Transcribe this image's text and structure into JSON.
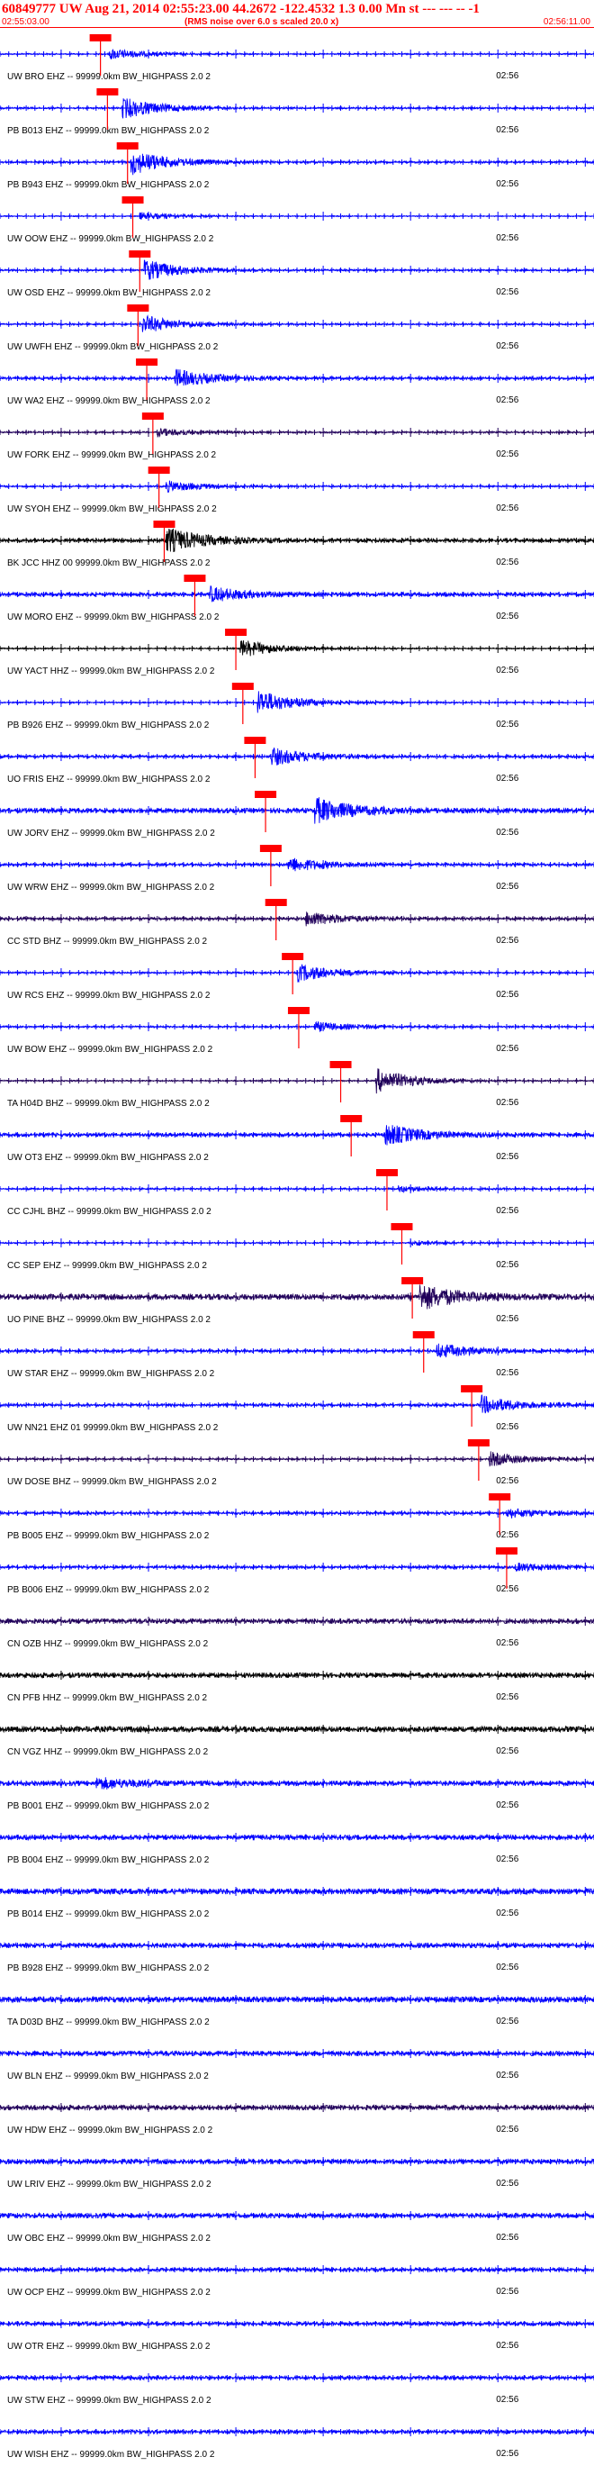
{
  "header": {
    "title": "60849777 UW Aug 21, 2014 02:55:23.00   44.2672 -122.4532  1.3 0.00 Mn st --- --- --  -1",
    "start_time": "02:55:03.00",
    "note": "(RMS noise over 6.0 s scaled 20.0 x)",
    "end_time": "02:56:11.00"
  },
  "chart_data": {
    "type": "line",
    "title": "60849777 UW Aug 21, 2014 02:55:23.00   44.2672 -122.4532  1.3 0.00 Mn st --- --- --  -1",
    "x_start": "02:55:03.00",
    "x_end": "02:56:11.00",
    "x_range_seconds": [
      0,
      68
    ],
    "tick_label": "02:56",
    "tick_label_time_s": 57,
    "grid": false,
    "legend": "none",
    "colors": {
      "blue": "#0000ff",
      "dark": "#20005a",
      "black": "#000000",
      "pick": "#ff0000"
    },
    "traces": [
      {
        "label": "UW BRO EHZ -- 99999.0km BW_HIGHPASS  2.0  2",
        "pick_s": 11.5,
        "color": "blue",
        "amp": 0.8,
        "burst_s": 12.5,
        "burst_amp": 6
      },
      {
        "label": "PB B013 EHZ -- 99999.0km BW_HIGHPASS  2.0  2",
        "pick_s": 12.3,
        "color": "blue",
        "amp": 1.0,
        "burst_s": 14.0,
        "burst_amp": 12
      },
      {
        "label": "PB B943 EHZ -- 99999.0km BW_HIGHPASS  2.0  2",
        "pick_s": 14.6,
        "color": "blue",
        "amp": 1.2,
        "burst_s": 15.0,
        "burst_amp": 14
      },
      {
        "label": "UW OOW EHZ -- 99999.0km BW_HIGHPASS  2.0  2",
        "pick_s": 15.2,
        "color": "blue",
        "amp": 0.6,
        "burst_s": 16.0,
        "burst_amp": 4
      },
      {
        "label": "UW OSD EHZ -- 99999.0km BW_HIGHPASS  2.0  2",
        "pick_s": 16.0,
        "color": "blue",
        "amp": 1.0,
        "burst_s": 16.5,
        "burst_amp": 12
      },
      {
        "label": "UW UWFH EHZ -- 99999.0km BW_HIGHPASS  2.0  2",
        "pick_s": 15.8,
        "color": "blue",
        "amp": 1.0,
        "burst_s": 16.3,
        "burst_amp": 10
      },
      {
        "label": "UW WA2 EHZ -- 99999.0km BW_HIGHPASS  2.0  2",
        "pick_s": 16.8,
        "color": "blue",
        "amp": 1.5,
        "burst_s": 20.0,
        "burst_amp": 10
      },
      {
        "label": "UW FORK EHZ -- 99999.0km BW_HIGHPASS  2.0  2",
        "pick_s": 17.5,
        "color": "dark",
        "amp": 1.0,
        "burst_s": 18.0,
        "burst_amp": 4
      },
      {
        "label": "UW SYOH EHZ -- 99999.0km BW_HIGHPASS  2.0  2",
        "pick_s": 18.2,
        "color": "blue",
        "amp": 1.0,
        "burst_s": 19.0,
        "burst_amp": 6
      },
      {
        "label": "BK JCC HHZ 00 99999.0km BW_HIGHPASS  2.0  2",
        "pick_s": 18.8,
        "color": "black",
        "amp": 2.0,
        "burst_s": 19.0,
        "burst_amp": 14
      },
      {
        "label": "UW MORO EHZ -- 99999.0km BW_HIGHPASS  2.0  2",
        "pick_s": 22.3,
        "color": "blue",
        "amp": 2.0,
        "burst_s": 24.0,
        "burst_amp": 8
      },
      {
        "label": "UW YACT HHZ -- 99999.0km BW_HIGHPASS  2.0  2",
        "pick_s": 27.0,
        "color": "black",
        "amp": 0.8,
        "burst_s": 27.5,
        "burst_amp": 10
      },
      {
        "label": "PB B926 EHZ -- 99999.0km BW_HIGHPASS  2.0  2",
        "pick_s": 27.8,
        "color": "blue",
        "amp": 0.8,
        "burst_s": 29.5,
        "burst_amp": 14
      },
      {
        "label": "UO FRIS EHZ -- 99999.0km BW_HIGHPASS  2.0  2",
        "pick_s": 29.2,
        "color": "blue",
        "amp": 1.5,
        "burst_s": 31.0,
        "burst_amp": 10
      },
      {
        "label": "UW JORV EHZ -- 99999.0km BW_HIGHPASS  2.0  2",
        "pick_s": 30.4,
        "color": "blue",
        "amp": 2.5,
        "burst_s": 36.0,
        "burst_amp": 14
      },
      {
        "label": "UW WRW EHZ -- 99999.0km BW_HIGHPASS  2.0  2",
        "pick_s": 31.0,
        "color": "blue",
        "amp": 1.5,
        "burst_s": 33.0,
        "burst_amp": 8
      },
      {
        "label": "CC STD BHZ -- 99999.0km BW_HIGHPASS  2.0  2",
        "pick_s": 31.6,
        "color": "dark",
        "amp": 1.5,
        "burst_s": 35.0,
        "burst_amp": 8
      },
      {
        "label": "UW RCS EHZ -- 99999.0km BW_HIGHPASS  2.0  2",
        "pick_s": 33.5,
        "color": "blue",
        "amp": 1.0,
        "burst_s": 34.0,
        "burst_amp": 10
      },
      {
        "label": "UW BOW EHZ -- 99999.0km BW_HIGHPASS  2.0  2",
        "pick_s": 34.2,
        "color": "blue",
        "amp": 1.0,
        "burst_s": 36.0,
        "burst_amp": 5
      },
      {
        "label": "TA H04D BHZ -- 99999.0km BW_HIGHPASS  2.0  2",
        "pick_s": 39.0,
        "color": "dark",
        "amp": 0.8,
        "burst_s": 43.0,
        "burst_amp": 14
      },
      {
        "label": "UW OT3 EHZ -- 99999.0km BW_HIGHPASS  2.0  2",
        "pick_s": 40.2,
        "color": "blue",
        "amp": 2.0,
        "burst_s": 44.0,
        "burst_amp": 12
      },
      {
        "label": "CC CJHL BHZ -- 99999.0km BW_HIGHPASS  2.0  2",
        "pick_s": 44.3,
        "color": "blue",
        "amp": 1.0,
        "burst_s": 45.5,
        "burst_amp": 3
      },
      {
        "label": "CC SEP EHZ -- 99999.0km BW_HIGHPASS  2.0  2",
        "pick_s": 46.0,
        "color": "blue",
        "amp": 0.8,
        "burst_s": 47.0,
        "burst_amp": 2
      },
      {
        "label": "UO PINE BHZ -- 99999.0km BW_HIGHPASS  2.0  2",
        "pick_s": 47.2,
        "color": "dark",
        "amp": 3.0,
        "burst_s": 48.0,
        "burst_amp": 14
      },
      {
        "label": "UW STAR EHZ -- 99999.0km BW_HIGHPASS  2.0  2",
        "pick_s": 48.5,
        "color": "blue",
        "amp": 1.5,
        "burst_s": 50.0,
        "burst_amp": 8
      },
      {
        "label": "UW NN21 EHZ 01 99999.0km BW_HIGHPASS  2.0  2",
        "pick_s": 54.0,
        "color": "blue",
        "amp": 1.5,
        "burst_s": 55.0,
        "burst_amp": 10
      },
      {
        "label": "UW DOSE BHZ -- 99999.0km BW_HIGHPASS  2.0  2",
        "pick_s": 54.8,
        "color": "dark",
        "amp": 1.0,
        "burst_s": 56.0,
        "burst_amp": 8
      },
      {
        "label": "PB B005 EHZ -- 99999.0km BW_HIGHPASS  2.0  2",
        "pick_s": 57.2,
        "color": "blue",
        "amp": 1.5,
        "burst_s": 58.0,
        "burst_amp": 5
      },
      {
        "label": "PB B006 EHZ -- 99999.0km BW_HIGHPASS  2.0  2",
        "pick_s": 58.0,
        "color": "blue",
        "amp": 1.5,
        "burst_s": 59.0,
        "burst_amp": 4
      },
      {
        "label": "CN OZB HHZ -- 99999.0km BW_HIGHPASS  2.0  2",
        "pick_s": null,
        "color": "dark",
        "amp": 2.5,
        "burst_s": null,
        "burst_amp": 0
      },
      {
        "label": "CN PFB HHZ -- 99999.0km BW_HIGHPASS  2.0  2",
        "pick_s": null,
        "color": "black",
        "amp": 2.5,
        "burst_s": null,
        "burst_amp": 0
      },
      {
        "label": "CN VGZ HHZ -- 99999.0km BW_HIGHPASS  2.0  2",
        "pick_s": null,
        "color": "black",
        "amp": 3.0,
        "burst_s": null,
        "burst_amp": 0
      },
      {
        "label": "PB B001 EHZ -- 99999.0km BW_HIGHPASS  2.0  2",
        "pick_s": null,
        "color": "blue",
        "amp": 2.5,
        "burst_s": 11.0,
        "burst_amp": 6
      },
      {
        "label": "PB B004 EHZ -- 99999.0km BW_HIGHPASS  2.0  2",
        "pick_s": null,
        "color": "blue",
        "amp": 2.5,
        "burst_s": null,
        "burst_amp": 0
      },
      {
        "label": "PB B014 EHZ -- 99999.0km BW_HIGHPASS  2.0  2",
        "pick_s": null,
        "color": "blue",
        "amp": 3.0,
        "burst_s": null,
        "burst_amp": 0
      },
      {
        "label": "PB B928 EHZ -- 99999.0km BW_HIGHPASS  2.0  2",
        "pick_s": null,
        "color": "blue",
        "amp": 2.5,
        "burst_s": null,
        "burst_amp": 0
      },
      {
        "label": "TA D03D BHZ -- 99999.0km BW_HIGHPASS  2.0  2",
        "pick_s": null,
        "color": "blue",
        "amp": 3.0,
        "burst_s": null,
        "burst_amp": 0
      },
      {
        "label": "UW BLN EHZ -- 99999.0km BW_HIGHPASS  2.0  2",
        "pick_s": null,
        "color": "blue",
        "amp": 2.5,
        "burst_s": null,
        "burst_amp": 0
      },
      {
        "label": "UW HDW EHZ -- 99999.0km BW_HIGHPASS  2.0  2",
        "pick_s": null,
        "color": "dark",
        "amp": 2.5,
        "burst_s": null,
        "burst_amp": 0
      },
      {
        "label": "UW LRIV EHZ -- 99999.0km BW_HIGHPASS  2.0  2",
        "pick_s": null,
        "color": "blue",
        "amp": 2.5,
        "burst_s": null,
        "burst_amp": 0
      },
      {
        "label": "UW OBC EHZ -- 99999.0km BW_HIGHPASS  2.0  2",
        "pick_s": null,
        "color": "blue",
        "amp": 2.5,
        "burst_s": null,
        "burst_amp": 0
      },
      {
        "label": "UW OCP EHZ -- 99999.0km BW_HIGHPASS  2.0  2",
        "pick_s": null,
        "color": "blue",
        "amp": 2.0,
        "burst_s": null,
        "burst_amp": 0
      },
      {
        "label": "UW OTR EHZ -- 99999.0km BW_HIGHPASS  2.0  2",
        "pick_s": null,
        "color": "blue",
        "amp": 2.0,
        "burst_s": null,
        "burst_amp": 0
      },
      {
        "label": "UW STW EHZ -- 99999.0km BW_HIGHPASS  2.0  2",
        "pick_s": null,
        "color": "blue",
        "amp": 2.0,
        "burst_s": null,
        "burst_amp": 0
      },
      {
        "label": "UW WISH EHZ -- 99999.0km BW_HIGHPASS  2.0  2",
        "pick_s": null,
        "color": "blue",
        "amp": 2.0,
        "burst_s": null,
        "burst_amp": 0
      }
    ]
  }
}
